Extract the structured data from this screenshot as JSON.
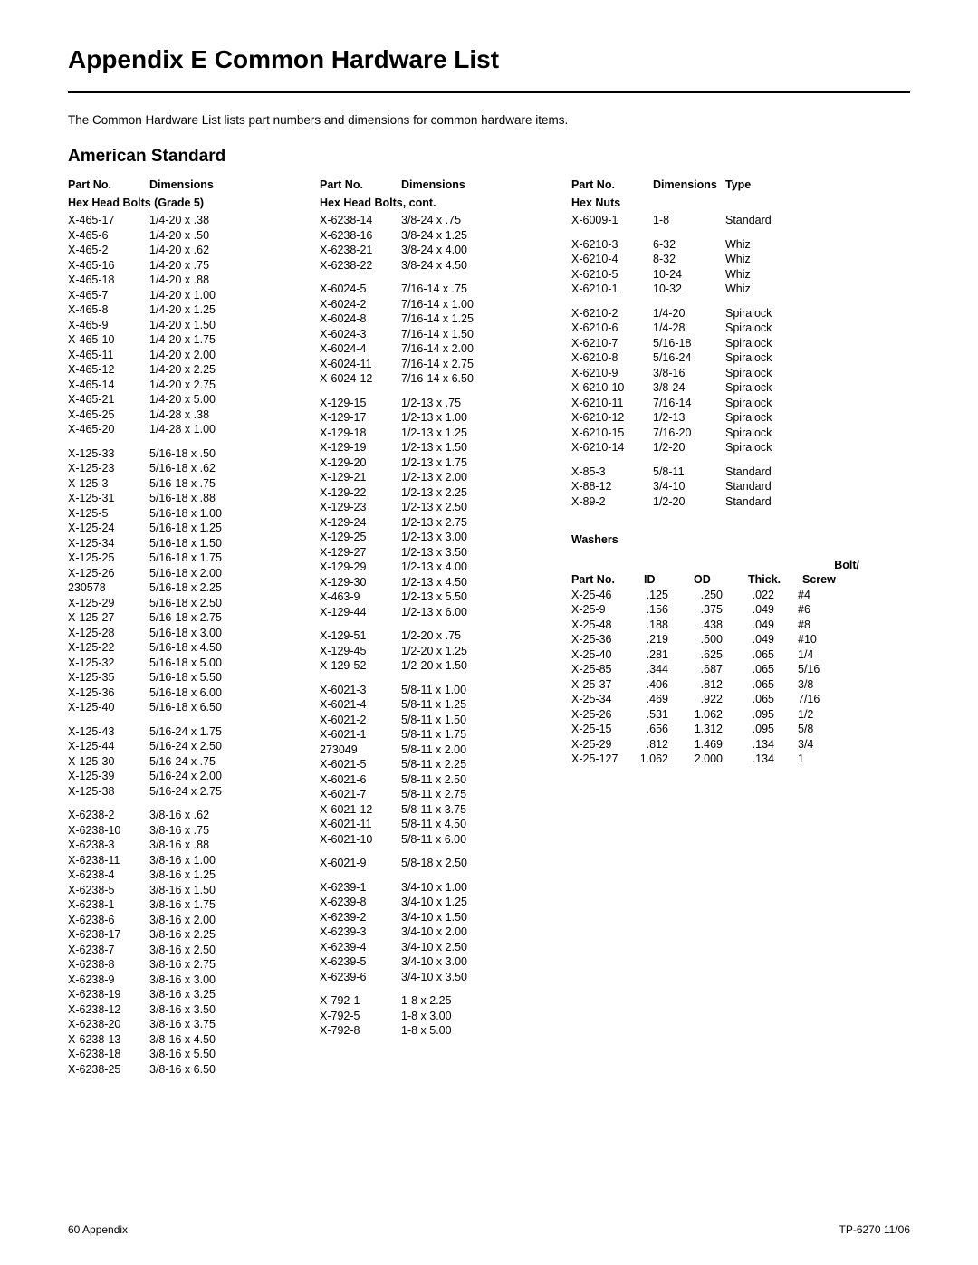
{
  "title": "Appendix E  Common Hardware List",
  "intro": "The Common Hardware List lists part numbers and dimensions for common hardware items.",
  "subtitle": "American Standard",
  "col1": {
    "h_partno": "Part No.",
    "h_dim": "Dimensions",
    "sub": "Hex Head Bolts (Grade 5)",
    "groups": [
      [
        [
          "X-465-17",
          "1/4-20 x .38"
        ],
        [
          "X-465-6",
          "1/4-20 x .50"
        ],
        [
          "X-465-2",
          "1/4-20 x .62"
        ],
        [
          "X-465-16",
          "1/4-20 x .75"
        ],
        [
          "X-465-18",
          "1/4-20 x .88"
        ],
        [
          "X-465-7",
          "1/4-20 x 1.00"
        ],
        [
          "X-465-8",
          "1/4-20 x 1.25"
        ],
        [
          "X-465-9",
          "1/4-20 x 1.50"
        ],
        [
          "X-465-10",
          "1/4-20 x 1.75"
        ],
        [
          "X-465-11",
          "1/4-20 x 2.00"
        ],
        [
          "X-465-12",
          "1/4-20 x 2.25"
        ],
        [
          "X-465-14",
          "1/4-20 x 2.75"
        ],
        [
          "X-465-21",
          "1/4-20 x 5.00"
        ],
        [
          "X-465-25",
          "1/4-28 x .38"
        ],
        [
          "X-465-20",
          "1/4-28 x 1.00"
        ]
      ],
      [
        [
          "X-125-33",
          "5/16-18 x .50"
        ],
        [
          "X-125-23",
          "5/16-18 x .62"
        ],
        [
          "X-125-3",
          "5/16-18 x .75"
        ],
        [
          "X-125-31",
          "5/16-18 x .88"
        ],
        [
          "X-125-5",
          "5/16-18 x 1.00"
        ],
        [
          "X-125-24",
          "5/16-18 x 1.25"
        ],
        [
          "X-125-34",
          "5/16-18 x 1.50"
        ],
        [
          "X-125-25",
          "5/16-18 x 1.75"
        ],
        [
          "X-125-26",
          "5/16-18 x 2.00"
        ],
        [
          "230578",
          "5/16-18 x 2.25"
        ],
        [
          "X-125-29",
          "5/16-18 x 2.50"
        ],
        [
          "X-125-27",
          "5/16-18 x 2.75"
        ],
        [
          "X-125-28",
          "5/16-18 x 3.00"
        ],
        [
          "X-125-22",
          "5/16-18 x 4.50"
        ],
        [
          "X-125-32",
          "5/16-18 x 5.00"
        ],
        [
          "X-125-35",
          "5/16-18 x 5.50"
        ],
        [
          "X-125-36",
          "5/16-18 x 6.00"
        ],
        [
          "X-125-40",
          "5/16-18 x 6.50"
        ]
      ],
      [
        [
          "X-125-43",
          "5/16-24 x 1.75"
        ],
        [
          "X-125-44",
          "5/16-24 x 2.50"
        ],
        [
          "X-125-30",
          "5/16-24 x .75"
        ],
        [
          "X-125-39",
          "5/16-24 x 2.00"
        ],
        [
          "X-125-38",
          "5/16-24 x 2.75"
        ]
      ],
      [
        [
          "X-6238-2",
          "3/8-16 x .62"
        ],
        [
          "X-6238-10",
          "3/8-16 x .75"
        ],
        [
          "X-6238-3",
          "3/8-16 x .88"
        ],
        [
          "X-6238-11",
          "3/8-16 x 1.00"
        ],
        [
          "X-6238-4",
          "3/8-16 x 1.25"
        ],
        [
          "X-6238-5",
          "3/8-16 x 1.50"
        ],
        [
          "X-6238-1",
          "3/8-16 x 1.75"
        ],
        [
          "X-6238-6",
          "3/8-16 x 2.00"
        ],
        [
          "X-6238-17",
          "3/8-16 x 2.25"
        ],
        [
          "X-6238-7",
          "3/8-16 x 2.50"
        ],
        [
          "X-6238-8",
          "3/8-16 x 2.75"
        ],
        [
          "X-6238-9",
          "3/8-16 x 3.00"
        ],
        [
          "X-6238-19",
          "3/8-16 x 3.25"
        ],
        [
          "X-6238-12",
          "3/8-16 x 3.50"
        ],
        [
          "X-6238-20",
          "3/8-16 x 3.75"
        ],
        [
          "X-6238-13",
          "3/8-16 x 4.50"
        ],
        [
          "X-6238-18",
          "3/8-16 x 5.50"
        ],
        [
          "X-6238-25",
          "3/8-16 x 6.50"
        ]
      ]
    ]
  },
  "col2": {
    "h_partno": "Part No.",
    "h_dim": "Dimensions",
    "sub": "Hex Head Bolts, cont.",
    "groups": [
      [
        [
          "X-6238-14",
          "3/8-24 x .75"
        ],
        [
          "X-6238-16",
          "3/8-24 x 1.25"
        ],
        [
          "X-6238-21",
          "3/8-24 x 4.00"
        ],
        [
          "X-6238-22",
          "3/8-24 x 4.50"
        ]
      ],
      [
        [
          "X-6024-5",
          "7/16-14 x .75"
        ],
        [
          "X-6024-2",
          "7/16-14 x 1.00"
        ],
        [
          "X-6024-8",
          "7/16-14 x 1.25"
        ],
        [
          "X-6024-3",
          "7/16-14 x 1.50"
        ],
        [
          "X-6024-4",
          "7/16-14 x 2.00"
        ],
        [
          "X-6024-11",
          "7/16-14 x 2.75"
        ],
        [
          "X-6024-12",
          "7/16-14 x 6.50"
        ]
      ],
      [
        [
          "X-129-15",
          "1/2-13 x .75"
        ],
        [
          "X-129-17",
          "1/2-13 x 1.00"
        ],
        [
          "X-129-18",
          "1/2-13 x 1.25"
        ],
        [
          "X-129-19",
          "1/2-13 x 1.50"
        ],
        [
          "X-129-20",
          "1/2-13 x 1.75"
        ],
        [
          "X-129-21",
          "1/2-13 x 2.00"
        ],
        [
          "X-129-22",
          "1/2-13 x 2.25"
        ],
        [
          "X-129-23",
          "1/2-13 x 2.50"
        ],
        [
          "X-129-24",
          "1/2-13 x 2.75"
        ],
        [
          "X-129-25",
          "1/2-13 x 3.00"
        ],
        [
          "X-129-27",
          "1/2-13 x 3.50"
        ],
        [
          "X-129-29",
          "1/2-13 x 4.00"
        ],
        [
          "X-129-30",
          "1/2-13 x 4.50"
        ],
        [
          "X-463-9",
          "1/2-13 x 5.50"
        ],
        [
          "X-129-44",
          "1/2-13 x 6.00"
        ]
      ],
      [
        [
          "X-129-51",
          "1/2-20 x .75"
        ],
        [
          "X-129-45",
          "1/2-20 x 1.25"
        ],
        [
          "X-129-52",
          "1/2-20 x 1.50"
        ]
      ],
      [
        [
          "X-6021-3",
          "5/8-11 x 1.00"
        ],
        [
          "X-6021-4",
          "5/8-11 x 1.25"
        ],
        [
          "X-6021-2",
          "5/8-11 x 1.50"
        ],
        [
          "X-6021-1",
          "5/8-11 x 1.75"
        ],
        [
          "273049",
          "5/8-11 x 2.00"
        ],
        [
          "X-6021-5",
          "5/8-11 x 2.25"
        ],
        [
          "X-6021-6",
          "5/8-11 x 2.50"
        ],
        [
          "X-6021-7",
          "5/8-11 x 2.75"
        ],
        [
          "X-6021-12",
          "5/8-11 x 3.75"
        ],
        [
          "X-6021-11",
          "5/8-11 x 4.50"
        ],
        [
          "X-6021-10",
          "5/8-11 x 6.00"
        ]
      ],
      [
        [
          "X-6021-9",
          "5/8-18 x 2.50"
        ]
      ],
      [
        [
          "X-6239-1",
          "3/4-10 x 1.00"
        ],
        [
          "X-6239-8",
          "3/4-10 x 1.25"
        ],
        [
          "X-6239-2",
          "3/4-10 x 1.50"
        ],
        [
          "X-6239-3",
          "3/4-10 x 2.00"
        ],
        [
          "X-6239-4",
          "3/4-10 x 2.50"
        ],
        [
          "X-6239-5",
          "3/4-10 x 3.00"
        ],
        [
          "X-6239-6",
          "3/4-10 x 3.50"
        ]
      ],
      [
        [
          "X-792-1",
          "1-8 x 2.25"
        ],
        [
          "X-792-5",
          "1-8 x 3.00"
        ],
        [
          "X-792-8",
          "1-8 x 5.00"
        ]
      ]
    ]
  },
  "col3": {
    "nuts": {
      "h_partno": "Part No.",
      "h_dim": "Dimensions",
      "h_type": "Type",
      "sub": "Hex Nuts",
      "groups": [
        [
          [
            "X-6009-1",
            "1-8",
            "Standard"
          ]
        ],
        [
          [
            "X-6210-3",
            "6-32",
            "Whiz"
          ],
          [
            "X-6210-4",
            "8-32",
            "Whiz"
          ],
          [
            "X-6210-5",
            "10-24",
            "Whiz"
          ],
          [
            "X-6210-1",
            "10-32",
            "Whiz"
          ]
        ],
        [
          [
            "X-6210-2",
            "1/4-20",
            "Spiralock"
          ],
          [
            "X-6210-6",
            "1/4-28",
            "Spiralock"
          ],
          [
            "X-6210-7",
            "5/16-18",
            "Spiralock"
          ],
          [
            "X-6210-8",
            "5/16-24",
            "Spiralock"
          ],
          [
            "X-6210-9",
            "3/8-16",
            "Spiralock"
          ],
          [
            "X-6210-10",
            "3/8-24",
            "Spiralock"
          ],
          [
            "X-6210-11",
            "7/16-14",
            "Spiralock"
          ],
          [
            "X-6210-12",
            "1/2-13",
            "Spiralock"
          ],
          [
            "X-6210-15",
            "7/16-20",
            "Spiralock"
          ],
          [
            "X-6210-14",
            "1/2-20",
            "Spiralock"
          ]
        ],
        [
          [
            "X-85-3",
            "5/8-11",
            "Standard"
          ],
          [
            "X-88-12",
            "3/4-10",
            "Standard"
          ],
          [
            "X-89-2",
            "1/2-20",
            "Standard"
          ]
        ]
      ]
    },
    "washers": {
      "sub": "Washers",
      "h_partno": "Part No.",
      "h_id": "ID",
      "h_od": "OD",
      "h_thick": "Thick.",
      "h_bolt1": "Bolt/",
      "h_bolt2": "Screw",
      "rows": [
        [
          "X-25-46",
          ".125",
          ".250",
          ".022",
          "#4"
        ],
        [
          "X-25-9",
          ".156",
          ".375",
          ".049",
          "#6"
        ],
        [
          "X-25-48",
          ".188",
          ".438",
          ".049",
          "#8"
        ],
        [
          "X-25-36",
          ".219",
          ".500",
          ".049",
          "#10"
        ],
        [
          "X-25-40",
          ".281",
          ".625",
          ".065",
          "1/4"
        ],
        [
          "X-25-85",
          ".344",
          ".687",
          ".065",
          "5/16"
        ],
        [
          "X-25-37",
          ".406",
          ".812",
          ".065",
          "3/8"
        ],
        [
          "X-25-34",
          ".469",
          ".922",
          ".065",
          "7/16"
        ],
        [
          "X-25-26",
          ".531",
          "1.062",
          ".095",
          "1/2"
        ],
        [
          "X-25-15",
          ".656",
          "1.312",
          ".095",
          "5/8"
        ],
        [
          "X-25-29",
          ".812",
          "1.469",
          ".134",
          "3/4"
        ],
        [
          "X-25-127",
          "1.062",
          "2.000",
          ".134",
          "1"
        ]
      ]
    }
  },
  "footer": {
    "left": "60  Appendix",
    "right": "TP-6270 11/06"
  }
}
